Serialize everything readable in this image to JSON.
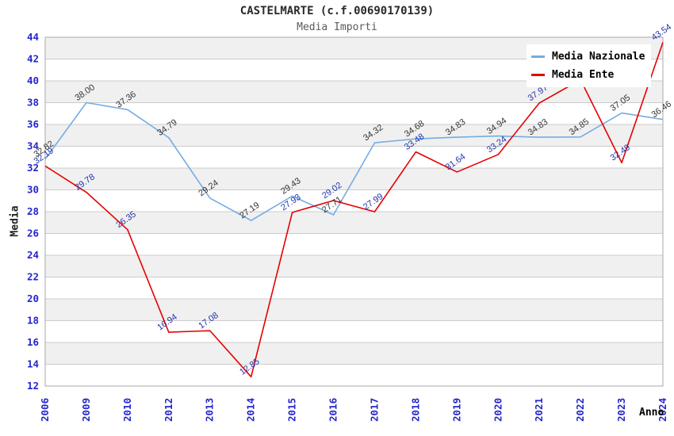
{
  "title": "CASTELMARTE (c.f.00690170139)",
  "subtitle": "Media Importi",
  "y_axis_title": "Media",
  "x_axis_title": "Anno",
  "legend": {
    "items": [
      {
        "label": "Media Nazionale",
        "color": "#76ACE4"
      },
      {
        "label": "Media Ente",
        "color": "#E60000"
      }
    ]
  },
  "colors": {
    "tick_label": "#2525CC",
    "grid_band": "#F0F0F0",
    "grid_line": "#CCCCCC",
    "plot_border": "#AAAAAA",
    "nazionale_line": "#76ACE4",
    "nazionale_value_label": "#333333",
    "ente_line": "#E60000",
    "ente_value_label": "#2233AA"
  },
  "chart_data": {
    "type": "line",
    "title": "CASTELMARTE (c.f.00690170139)",
    "subtitle": "Media Importi",
    "xlabel": "Anno",
    "ylabel": "Media",
    "ylim": [
      12,
      44
    ],
    "ytick_step": 2,
    "grid": "horizontal-bands",
    "legend_position": "top-right-inside",
    "categories": [
      "2006",
      "2009",
      "2010",
      "2012",
      "2013",
      "2014",
      "2015",
      "2016",
      "2017",
      "2018",
      "2019",
      "2020",
      "2021",
      "2022",
      "2023",
      "2024"
    ],
    "series": [
      {
        "name": "Media Nazionale",
        "color": "#76ACE4",
        "label_color": "#333333",
        "values": [
          32.82,
          38.0,
          37.36,
          34.79,
          29.24,
          27.19,
          29.43,
          27.71,
          34.32,
          34.68,
          34.83,
          34.94,
          34.83,
          34.85,
          37.05,
          36.46
        ]
      },
      {
        "name": "Media Ente",
        "color": "#E60000",
        "label_color": "#2233AA",
        "values": [
          32.19,
          29.78,
          26.35,
          16.94,
          17.08,
          12.85,
          27.93,
          29.02,
          27.99,
          33.48,
          31.64,
          33.24,
          37.97,
          40.1,
          32.49,
          43.54
        ],
        "note_hidden_label_index": 13
      }
    ]
  }
}
